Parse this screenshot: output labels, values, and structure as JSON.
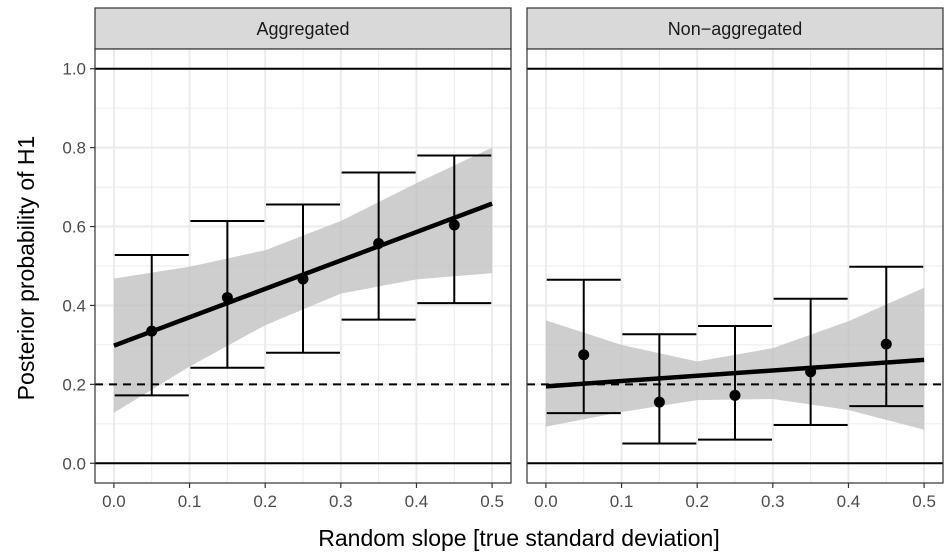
{
  "chart_data": {
    "type": "scatter",
    "xlabel": "Random slope [true standard deviation]",
    "ylabel": "Posterior probability of H1",
    "xlim": [
      -0.025,
      0.525
    ],
    "ylim": [
      -0.05,
      1.05
    ],
    "x_ticks": [
      "0.0",
      "0.1",
      "0.2",
      "0.3",
      "0.4",
      "0.5"
    ],
    "y_ticks": [
      "0.0",
      "0.2",
      "0.4",
      "0.6",
      "0.8",
      "1.0"
    ],
    "x_tick_values": [
      0,
      0.1,
      0.2,
      0.3,
      0.4,
      0.5
    ],
    "y_tick_values": [
      0,
      0.2,
      0.4,
      0.6,
      0.8,
      1.0
    ],
    "grid": true,
    "reference_lines": [
      {
        "y": 0.0,
        "style": "solid"
      },
      {
        "y": 1.0,
        "style": "solid"
      },
      {
        "y": 0.2,
        "style": "dashed"
      }
    ],
    "colors": {
      "points": "#000000",
      "line": "#000000",
      "band": "#bebebe",
      "strip": "#d9d9d9",
      "grid": "#ebebeb",
      "border": "#333333"
    },
    "panels": [
      {
        "title": "Aggregated",
        "points": [
          {
            "x": 0.05,
            "y": 0.335,
            "lower": 0.172,
            "upper": 0.528
          },
          {
            "x": 0.15,
            "y": 0.42,
            "lower": 0.242,
            "upper": 0.614
          },
          {
            "x": 0.25,
            "y": 0.467,
            "lower": 0.28,
            "upper": 0.656
          },
          {
            "x": 0.35,
            "y": 0.557,
            "lower": 0.364,
            "upper": 0.737
          },
          {
            "x": 0.45,
            "y": 0.604,
            "lower": 0.406,
            "upper": 0.78
          }
        ],
        "fit": {
          "x": [
            0.0,
            0.5
          ],
          "y": [
            0.298,
            0.658
          ]
        },
        "band": {
          "x": [
            0.0,
            0.1,
            0.2,
            0.3,
            0.4,
            0.5
          ],
          "lower": [
            0.128,
            0.245,
            0.35,
            0.43,
            0.466,
            0.482
          ],
          "upper": [
            0.468,
            0.498,
            0.54,
            0.614,
            0.71,
            0.8
          ]
        }
      },
      {
        "title": "Non−aggregated",
        "points": [
          {
            "x": 0.05,
            "y": 0.275,
            "lower": 0.127,
            "upper": 0.465
          },
          {
            "x": 0.15,
            "y": 0.155,
            "lower": 0.05,
            "upper": 0.327
          },
          {
            "x": 0.25,
            "y": 0.172,
            "lower": 0.06,
            "upper": 0.348
          },
          {
            "x": 0.35,
            "y": 0.232,
            "lower": 0.097,
            "upper": 0.417
          },
          {
            "x": 0.45,
            "y": 0.302,
            "lower": 0.145,
            "upper": 0.498
          }
        ],
        "fit": {
          "x": [
            0.0,
            0.5
          ],
          "y": [
            0.195,
            0.262
          ]
        },
        "band": {
          "x": [
            0.0,
            0.1,
            0.2,
            0.3,
            0.4,
            0.5
          ],
          "lower": [
            0.093,
            0.13,
            0.16,
            0.163,
            0.135,
            0.085
          ],
          "upper": [
            0.362,
            0.3,
            0.258,
            0.292,
            0.36,
            0.445
          ]
        }
      }
    ]
  }
}
